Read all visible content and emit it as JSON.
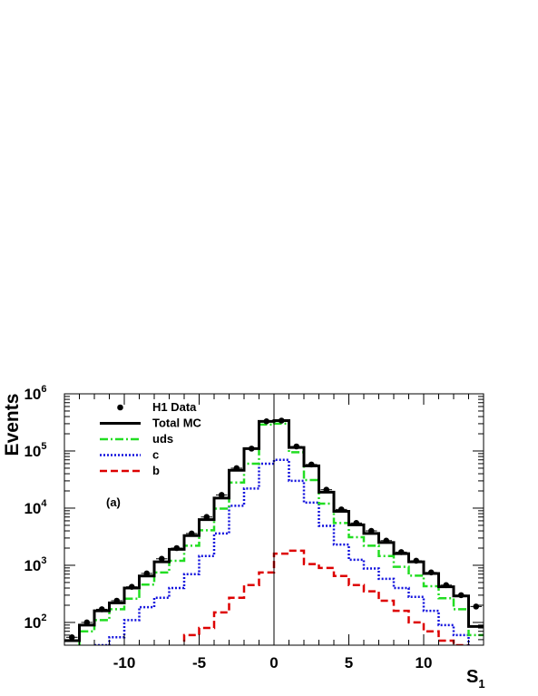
{
  "chart_data": {
    "type": "histogram",
    "xlabel": "S",
    "xlabel_sub": "1",
    "ylabel": "Events",
    "annotation": "(a)",
    "xlim": [
      -14,
      14
    ],
    "ylim": [
      40,
      1000000
    ],
    "yscale": "log",
    "x_ticks": [
      -10,
      -5,
      0,
      5,
      10
    ],
    "x_tick_labels": [
      "-10",
      "-5",
      "0",
      "5",
      "10"
    ],
    "y_ticks": [
      100,
      1000,
      10000,
      100000,
      1000000
    ],
    "y_tick_base": "10",
    "y_tick_exponents": [
      "2",
      "3",
      "4",
      "5",
      "6"
    ],
    "legend_position": "top-left",
    "bin_edges": [
      -14,
      -13,
      -12,
      -11,
      -10,
      -9,
      -8,
      -7,
      -6,
      -5,
      -4,
      -3,
      -2,
      -1,
      0,
      1,
      2,
      3,
      4,
      5,
      6,
      7,
      8,
      9,
      10,
      11,
      12,
      13,
      14
    ],
    "series": [
      {
        "name": "H1 Data",
        "style": "points",
        "color": "#000000",
        "values": [
          55,
          100,
          170,
          240,
          420,
          720,
          1300,
          2000,
          3600,
          7000,
          17000,
          50000,
          110000,
          330000,
          340000,
          120000,
          58000,
          21000,
          9500,
          5500,
          4000,
          2700,
          1700,
          1200,
          750,
          450,
          300,
          190
        ]
      },
      {
        "name": "Total MC",
        "style": "solid",
        "color": "#000000",
        "values": [
          48,
          90,
          160,
          220,
          400,
          650,
          1150,
          1900,
          3300,
          6300,
          15000,
          46000,
          110000,
          330000,
          340000,
          115000,
          55000,
          19000,
          8800,
          5100,
          3600,
          2500,
          1600,
          1150,
          720,
          420,
          290,
          85
        ]
      },
      {
        "name": "uds",
        "style": "dash-dot",
        "color": "#22dd22",
        "values": [
          38,
          70,
          110,
          170,
          260,
          460,
          750,
          1200,
          2200,
          4100,
          9800,
          28000,
          60000,
          290000,
          300000,
          95000,
          31000,
          12000,
          5500,
          3100,
          2200,
          1450,
          940,
          660,
          430,
          265,
          170,
          60
        ]
      },
      {
        "name": "c",
        "style": "dotted",
        "color": "#1111dd",
        "values": [
          0,
          0,
          40,
          55,
          110,
          185,
          270,
          400,
          700,
          1450,
          3600,
          11000,
          22000,
          60000,
          70000,
          30000,
          12500,
          4900,
          2300,
          1250,
          880,
          580,
          400,
          280,
          160,
          90,
          60,
          38
        ]
      },
      {
        "name": "b",
        "style": "dashed",
        "color": "#dd0000",
        "values": [
          0,
          0,
          0,
          0,
          0,
          0,
          0,
          35,
          60,
          80,
          150,
          270,
          450,
          750,
          1600,
          1800,
          1050,
          900,
          650,
          450,
          350,
          240,
          160,
          100,
          70,
          48,
          40,
          0
        ]
      }
    ]
  }
}
